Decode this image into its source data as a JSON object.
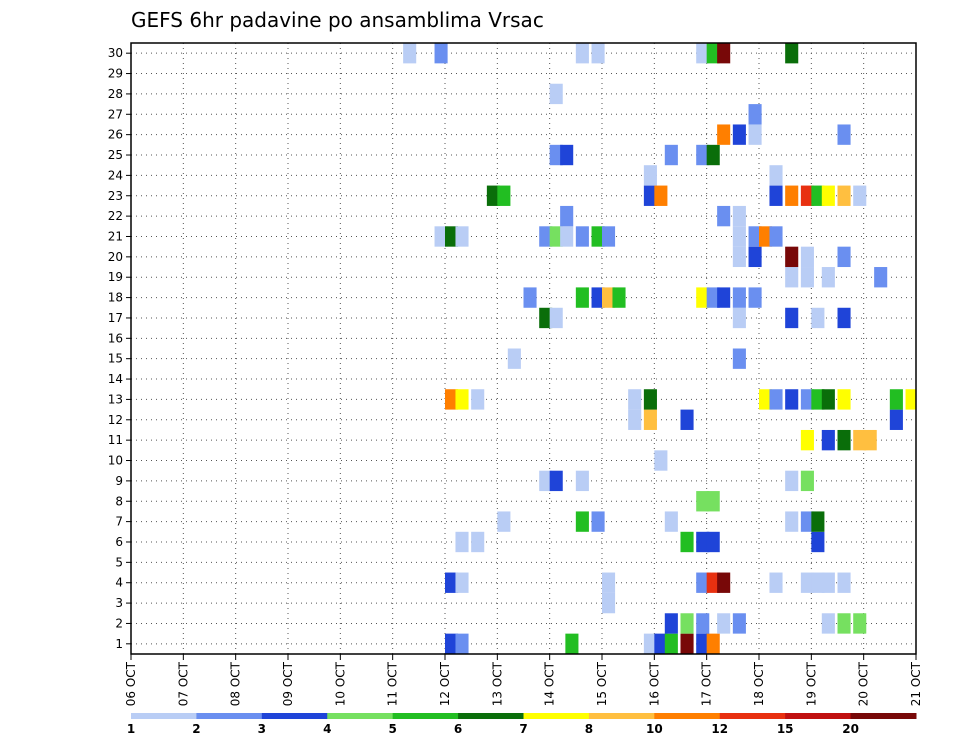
{
  "chart_data": {
    "type": "heatmap",
    "title": "GEFS 6hr padavine po ansamblima Vrsac",
    "xlabel": "",
    "ylabel": "",
    "y_members": [
      1,
      2,
      3,
      4,
      5,
      6,
      7,
      8,
      9,
      10,
      11,
      12,
      13,
      14,
      15,
      16,
      17,
      18,
      19,
      20,
      21,
      22,
      23,
      24,
      25,
      26,
      27,
      28,
      29,
      30
    ],
    "ylim": [
      0,
      30
    ],
    "x_ticks": [
      "06 OCT",
      "07 OCT",
      "08 OCT",
      "09 OCT",
      "10 OCT",
      "11 OCT",
      "12 OCT",
      "13 OCT",
      "14 OCT",
      "15 OCT",
      "16 OCT",
      "17 OCT",
      "18 OCT",
      "19 OCT",
      "20 OCT",
      "21 OCT"
    ],
    "x_range_days": [
      0,
      15
    ],
    "grid": true,
    "legend_position": "bottom",
    "colorbar": {
      "labels": [
        "1",
        "2",
        "3",
        "4",
        "5",
        "6",
        "7",
        "8",
        "10",
        "12",
        "15",
        "20"
      ],
      "colors": [
        "#b9cdf5",
        "#6a8ff0",
        "#1f44d8",
        "#76e060",
        "#22be22",
        "#0a6e0a",
        "#ffff00",
        "#ffbf40",
        "#ff7f00",
        "#e83010",
        "#c01010",
        "#780808"
      ]
    },
    "cells": [
      {
        "t": 12.0,
        "m": 0,
        "c": 2
      },
      {
        "t": 12.2,
        "m": 0,
        "c": 1
      },
      {
        "t": 14.3,
        "m": 0,
        "c": 4
      },
      {
        "t": 15.8,
        "m": 0,
        "c": 0
      },
      {
        "t": 16.0,
        "m": 0,
        "c": 2
      },
      {
        "t": 16.2,
        "m": 0,
        "c": 4
      },
      {
        "t": 16.5,
        "m": 0,
        "c": 11
      },
      {
        "t": 16.8,
        "m": 0,
        "c": 2
      },
      {
        "t": 17.0,
        "m": 0,
        "c": 8
      },
      {
        "t": 16.2,
        "m": 1,
        "c": 2
      },
      {
        "t": 16.5,
        "m": 1,
        "c": 3
      },
      {
        "t": 16.8,
        "m": 1,
        "c": 1
      },
      {
        "t": 17.2,
        "m": 1,
        "c": 0
      },
      {
        "t": 17.5,
        "m": 1,
        "c": 1
      },
      {
        "t": 19.2,
        "m": 1,
        "c": 0
      },
      {
        "t": 19.5,
        "m": 1,
        "c": 3
      },
      {
        "t": 19.8,
        "m": 1,
        "c": 3
      },
      {
        "t": 21.0,
        "m": 1,
        "c": 5
      },
      {
        "t": 15.0,
        "m": 2,
        "c": 0
      },
      {
        "t": 12.0,
        "m": 3,
        "c": 2
      },
      {
        "t": 12.2,
        "m": 3,
        "c": 0
      },
      {
        "t": 15.0,
        "m": 3,
        "c": 0
      },
      {
        "t": 16.8,
        "m": 3,
        "c": 1
      },
      {
        "t": 17.0,
        "m": 3,
        "c": 9
      },
      {
        "t": 17.2,
        "m": 3,
        "c": 11
      },
      {
        "t": 18.2,
        "m": 3,
        "c": 0
      },
      {
        "t": 18.8,
        "m": 3,
        "c": 0
      },
      {
        "t": 19.0,
        "m": 3,
        "c": 0
      },
      {
        "t": 19.2,
        "m": 3,
        "c": 0
      },
      {
        "t": 19.5,
        "m": 3,
        "c": 0
      },
      {
        "t": 12.2,
        "m": 5,
        "c": 0
      },
      {
        "t": 12.5,
        "m": 5,
        "c": 0
      },
      {
        "t": 16.5,
        "m": 5,
        "c": 4
      },
      {
        "t": 16.8,
        "m": 5,
        "c": 2
      },
      {
        "t": 17.0,
        "m": 5,
        "c": 2
      },
      {
        "t": 19.0,
        "m": 5,
        "c": 2
      },
      {
        "t": 13.0,
        "m": 6,
        "c": 0
      },
      {
        "t": 14.5,
        "m": 6,
        "c": 4
      },
      {
        "t": 14.8,
        "m": 6,
        "c": 1
      },
      {
        "t": 16.2,
        "m": 6,
        "c": 0
      },
      {
        "t": 18.5,
        "m": 6,
        "c": 0
      },
      {
        "t": 18.8,
        "m": 6,
        "c": 1
      },
      {
        "t": 19.0,
        "m": 6,
        "c": 5
      },
      {
        "t": 16.8,
        "m": 7,
        "c": 3
      },
      {
        "t": 17.0,
        "m": 7,
        "c": 3
      },
      {
        "t": 13.8,
        "m": 8,
        "c": 0
      },
      {
        "t": 14.0,
        "m": 8,
        "c": 2
      },
      {
        "t": 14.5,
        "m": 8,
        "c": 0
      },
      {
        "t": 18.5,
        "m": 8,
        "c": 0
      },
      {
        "t": 18.8,
        "m": 8,
        "c": 3
      },
      {
        "t": 16.0,
        "m": 9,
        "c": 0
      },
      {
        "t": 18.8,
        "m": 10,
        "c": 6
      },
      {
        "t": 19.2,
        "m": 10,
        "c": 2
      },
      {
        "t": 19.5,
        "m": 10,
        "c": 5
      },
      {
        "t": 19.8,
        "m": 10,
        "c": 7
      },
      {
        "t": 20.0,
        "m": 10,
        "c": 7
      },
      {
        "t": 15.5,
        "m": 11,
        "c": 0
      },
      {
        "t": 15.8,
        "m": 11,
        "c": 7
      },
      {
        "t": 16.5,
        "m": 11,
        "c": 2
      },
      {
        "t": 20.5,
        "m": 11,
        "c": 2
      },
      {
        "t": 21.0,
        "m": 11,
        "c": 5
      },
      {
        "t": 12.0,
        "m": 12,
        "c": 8
      },
      {
        "t": 12.2,
        "m": 12,
        "c": 6
      },
      {
        "t": 12.5,
        "m": 12,
        "c": 0
      },
      {
        "t": 15.5,
        "m": 12,
        "c": 0
      },
      {
        "t": 15.8,
        "m": 12,
        "c": 5
      },
      {
        "t": 18.0,
        "m": 12,
        "c": 6
      },
      {
        "t": 18.2,
        "m": 12,
        "c": 1
      },
      {
        "t": 18.5,
        "m": 12,
        "c": 2
      },
      {
        "t": 18.8,
        "m": 12,
        "c": 1
      },
      {
        "t": 19.0,
        "m": 12,
        "c": 4
      },
      {
        "t": 19.2,
        "m": 12,
        "c": 5
      },
      {
        "t": 19.5,
        "m": 12,
        "c": 6
      },
      {
        "t": 20.5,
        "m": 12,
        "c": 4
      },
      {
        "t": 20.8,
        "m": 12,
        "c": 6
      },
      {
        "t": 21.0,
        "m": 12,
        "c": 1
      },
      {
        "t": 13.2,
        "m": 14,
        "c": 0
      },
      {
        "t": 17.5,
        "m": 14,
        "c": 1
      },
      {
        "t": 13.8,
        "m": 16,
        "c": 5
      },
      {
        "t": 14.0,
        "m": 16,
        "c": 0
      },
      {
        "t": 17.5,
        "m": 16,
        "c": 0
      },
      {
        "t": 18.5,
        "m": 16,
        "c": 2
      },
      {
        "t": 19.0,
        "m": 16,
        "c": 0
      },
      {
        "t": 19.5,
        "m": 16,
        "c": 2
      },
      {
        "t": 13.5,
        "m": 17,
        "c": 1
      },
      {
        "t": 14.5,
        "m": 17,
        "c": 4
      },
      {
        "t": 14.8,
        "m": 17,
        "c": 2
      },
      {
        "t": 15.0,
        "m": 17,
        "c": 7
      },
      {
        "t": 15.2,
        "m": 17,
        "c": 4
      },
      {
        "t": 16.8,
        "m": 17,
        "c": 6
      },
      {
        "t": 17.0,
        "m": 17,
        "c": 1
      },
      {
        "t": 17.2,
        "m": 17,
        "c": 2
      },
      {
        "t": 17.5,
        "m": 17,
        "c": 1
      },
      {
        "t": 17.8,
        "m": 17,
        "c": 1
      },
      {
        "t": 18.5,
        "m": 18,
        "c": 0
      },
      {
        "t": 18.8,
        "m": 18,
        "c": 0
      },
      {
        "t": 19.2,
        "m": 18,
        "c": 0
      },
      {
        "t": 20.2,
        "m": 18,
        "c": 1
      },
      {
        "t": 21.0,
        "m": 18,
        "c": 0
      },
      {
        "t": 17.5,
        "m": 19,
        "c": 0
      },
      {
        "t": 17.8,
        "m": 19,
        "c": 2
      },
      {
        "t": 18.5,
        "m": 19,
        "c": 11
      },
      {
        "t": 18.8,
        "m": 19,
        "c": 0
      },
      {
        "t": 19.5,
        "m": 19,
        "c": 1
      },
      {
        "t": 11.8,
        "m": 20,
        "c": 0
      },
      {
        "t": 12.0,
        "m": 20,
        "c": 5
      },
      {
        "t": 12.2,
        "m": 20,
        "c": 0
      },
      {
        "t": 13.8,
        "m": 20,
        "c": 1
      },
      {
        "t": 14.0,
        "m": 20,
        "c": 3
      },
      {
        "t": 14.2,
        "m": 20,
        "c": 0
      },
      {
        "t": 14.5,
        "m": 20,
        "c": 1
      },
      {
        "t": 14.8,
        "m": 20,
        "c": 4
      },
      {
        "t": 15.0,
        "m": 20,
        "c": 1
      },
      {
        "t": 17.5,
        "m": 20,
        "c": 0
      },
      {
        "t": 17.8,
        "m": 20,
        "c": 1
      },
      {
        "t": 18.0,
        "m": 20,
        "c": 8
      },
      {
        "t": 18.2,
        "m": 20,
        "c": 1
      },
      {
        "t": 14.2,
        "m": 21,
        "c": 1
      },
      {
        "t": 17.2,
        "m": 21,
        "c": 1
      },
      {
        "t": 17.5,
        "m": 21,
        "c": 0
      },
      {
        "t": 12.8,
        "m": 22,
        "c": 5
      },
      {
        "t": 13.0,
        "m": 22,
        "c": 4
      },
      {
        "t": 15.8,
        "m": 22,
        "c": 2
      },
      {
        "t": 16.0,
        "m": 22,
        "c": 8
      },
      {
        "t": 18.2,
        "m": 22,
        "c": 2
      },
      {
        "t": 18.5,
        "m": 22,
        "c": 8
      },
      {
        "t": 18.8,
        "m": 22,
        "c": 9
      },
      {
        "t": 19.0,
        "m": 22,
        "c": 4
      },
      {
        "t": 19.2,
        "m": 22,
        "c": 6
      },
      {
        "t": 19.5,
        "m": 22,
        "c": 7
      },
      {
        "t": 19.8,
        "m": 22,
        "c": 0
      },
      {
        "t": 15.8,
        "m": 23,
        "c": 0
      },
      {
        "t": 18.2,
        "m": 23,
        "c": 0
      },
      {
        "t": 14.0,
        "m": 24,
        "c": 1
      },
      {
        "t": 14.2,
        "m": 24,
        "c": 2
      },
      {
        "t": 16.2,
        "m": 24,
        "c": 1
      },
      {
        "t": 16.8,
        "m": 24,
        "c": 1
      },
      {
        "t": 17.0,
        "m": 24,
        "c": 5
      },
      {
        "t": 17.2,
        "m": 25,
        "c": 8
      },
      {
        "t": 17.5,
        "m": 25,
        "c": 2
      },
      {
        "t": 17.8,
        "m": 25,
        "c": 0
      },
      {
        "t": 19.5,
        "m": 25,
        "c": 1
      },
      {
        "t": 17.8,
        "m": 26,
        "c": 1
      },
      {
        "t": 14.0,
        "m": 27,
        "c": 0
      },
      {
        "t": 11.2,
        "m": 29,
        "c": 0
      },
      {
        "t": 11.8,
        "m": 29,
        "c": 1
      },
      {
        "t": 14.5,
        "m": 29,
        "c": 0
      },
      {
        "t": 14.8,
        "m": 29,
        "c": 0
      },
      {
        "t": 16.8,
        "m": 29,
        "c": 0
      },
      {
        "t": 17.0,
        "m": 29,
        "c": 4
      },
      {
        "t": 17.2,
        "m": 29,
        "c": 11
      },
      {
        "t": 18.5,
        "m": 29,
        "c": 5
      }
    ]
  }
}
